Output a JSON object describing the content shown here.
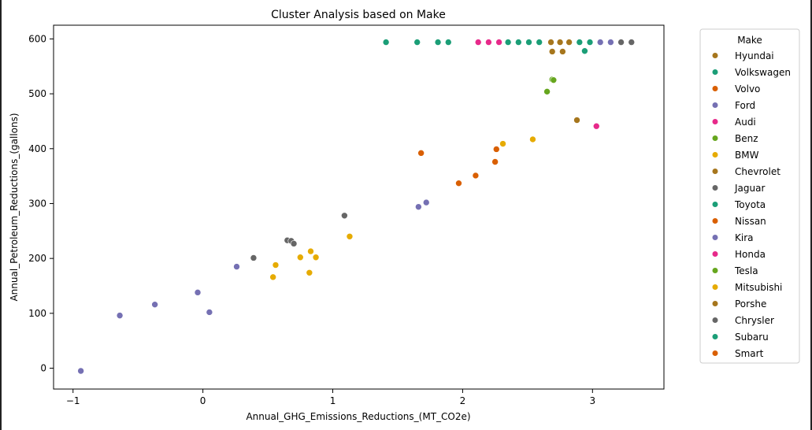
{
  "chart_data": {
    "type": "scatter",
    "title": "Cluster Analysis based on Make",
    "xlabel": "Annual_GHG_Emissions_Reductions_(MT_CO2e)",
    "ylabel": "Annual_Petroleum_Reductions_(gallons)",
    "xlim": [
      -1.15,
      3.55
    ],
    "ylim": [
      -38,
      625
    ],
    "x_ticks": [
      -1,
      0,
      1,
      2,
      3
    ],
    "y_ticks": [
      0,
      100,
      200,
      300,
      400,
      500,
      600
    ],
    "grid": false,
    "legend_title": "Make",
    "legend_position": "outside-right",
    "series": [
      {
        "name": "Hyundai",
        "color": "#a6761d",
        "points": []
      },
      {
        "name": "Volkswagen",
        "color": "#1b9e77",
        "points": [
          [
            1.41,
            594
          ],
          [
            1.65,
            594
          ],
          [
            1.81,
            594
          ],
          [
            1.89,
            594
          ]
        ]
      },
      {
        "name": "Volvo",
        "color": "#d95f02",
        "points": [
          [
            1.68,
            392
          ]
        ]
      },
      {
        "name": "Ford",
        "color": "#7570b3",
        "points": [
          [
            -0.94,
            -5
          ],
          [
            -0.64,
            96
          ],
          [
            -0.37,
            116
          ],
          [
            -0.04,
            138
          ],
          [
            0.05,
            102
          ],
          [
            0.26,
            185
          ],
          [
            1.66,
            294
          ],
          [
            1.72,
            302
          ]
        ]
      },
      {
        "name": "Audi",
        "color": "#e7298a",
        "points": [
          [
            2.12,
            594
          ],
          [
            2.2,
            594
          ],
          [
            2.28,
            594
          ]
        ]
      },
      {
        "name": "Benz",
        "color": "#66a61e",
        "points": [
          [
            2.65,
            504
          ],
          [
            2.69,
            526
          ]
        ]
      },
      {
        "name": "BMW",
        "color": "#e6ab02",
        "points": [
          [
            0.54,
            166
          ],
          [
            0.56,
            188
          ],
          [
            0.75,
            202
          ],
          [
            0.82,
            174
          ],
          [
            0.83,
            213
          ],
          [
            0.87,
            202
          ],
          [
            1.13,
            240
          ],
          [
            2.31,
            409
          ],
          [
            2.54,
            417
          ]
        ]
      },
      {
        "name": "Chevrolet",
        "color": "#a6761d",
        "points": [
          [
            2.68,
            594
          ],
          [
            2.75,
            594
          ],
          [
            2.82,
            594
          ],
          [
            2.69,
            577
          ],
          [
            2.77,
            577
          ],
          [
            2.88,
            452
          ]
        ]
      },
      {
        "name": "Jaguar",
        "color": "#666666",
        "points": [
          [
            0.39,
            201
          ],
          [
            0.65,
            233
          ],
          [
            0.68,
            232
          ],
          [
            0.7,
            227
          ],
          [
            1.09,
            278
          ]
        ]
      },
      {
        "name": "Toyota",
        "color": "#1b9e77",
        "points": [
          [
            2.35,
            594
          ],
          [
            2.43,
            594
          ],
          [
            2.51,
            594
          ],
          [
            2.59,
            594
          ],
          [
            2.9,
            594
          ],
          [
            2.98,
            594
          ],
          [
            2.94,
            578
          ]
        ]
      },
      {
        "name": "Nissan",
        "color": "#d95f02",
        "points": [
          [
            1.97,
            337
          ],
          [
            2.1,
            351
          ],
          [
            2.25,
            376
          ],
          [
            2.26,
            399
          ]
        ]
      },
      {
        "name": "Kira",
        "color": "#7570b3",
        "points": [
          [
            3.06,
            594
          ],
          [
            3.14,
            594
          ]
        ]
      },
      {
        "name": "Honda",
        "color": "#e7298a",
        "points": [
          [
            3.03,
            441
          ]
        ]
      },
      {
        "name": "Tesla",
        "color": "#66a61e",
        "points": [
          [
            2.7,
            525
          ]
        ]
      },
      {
        "name": "Mitsubishi",
        "color": "#e6ab02",
        "points": []
      },
      {
        "name": "Porshe",
        "color": "#a6761d",
        "points": []
      },
      {
        "name": "Chrysler",
        "color": "#666666",
        "points": [
          [
            3.22,
            594
          ],
          [
            3.3,
            594
          ]
        ]
      },
      {
        "name": "Subaru",
        "color": "#1b9e77",
        "points": []
      },
      {
        "name": "Smart",
        "color": "#d95f02",
        "points": []
      }
    ]
  }
}
